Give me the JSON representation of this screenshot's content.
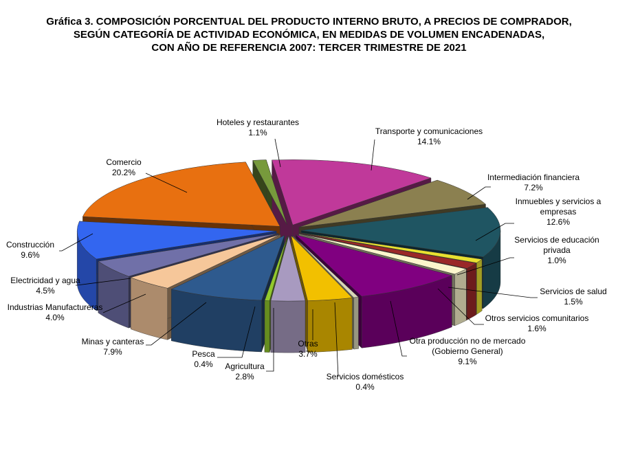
{
  "chart_data": {
    "type": "pie",
    "title_lines": [
      "Gráfica 3. COMPOSICIÓN PORCENTUAL DEL PRODUCTO INTERNO BRUTO, A PRECIOS DE COMPRADOR,",
      "SEGÚN CATEGORÍA DE ACTIVIDAD ECONÓMICA, EN MEDIDAS DE VOLUMEN ENCADENADAS,",
      "CON AÑO DE REFERENCIA 2007: TERCER TRIMESTRE DE 2021"
    ],
    "exploded": true,
    "three_d": true,
    "slices": [
      {
        "label": [
          "Transporte y comunicaciones"
        ],
        "value": 14.1,
        "value_label": "14.1%",
        "color": "#c0399a"
      },
      {
        "label": [
          "Intermediación financiera"
        ],
        "value": 7.2,
        "value_label": "7.2%",
        "color": "#8b8050"
      },
      {
        "label": [
          "Inmuebles y servicios a",
          "empresas"
        ],
        "value": 12.6,
        "value_label": "12.6%",
        "color": "#1f5562"
      },
      {
        "label": [
          "Servicios de educación",
          "privada"
        ],
        "value": 1.0,
        "value_label": "1.0%",
        "color": "#e8e030"
      },
      {
        "label": [
          "Servicios  de salud"
        ],
        "value": 1.5,
        "value_label": "1.5%",
        "color": "#9a2828"
      },
      {
        "label": [
          "Otros servicios comunitarios"
        ],
        "value": 1.6,
        "value_label": "1.6%",
        "color": "#fbf6cc"
      },
      {
        "label": [
          "Otra producción no de mercado",
          "(Gobierno General)"
        ],
        "value": 9.1,
        "value_label": "9.1%",
        "color": "#800080"
      },
      {
        "label": [
          "Servicios  domésticos"
        ],
        "value": 0.4,
        "value_label": "0.4%",
        "color": "#d9d6b8"
      },
      {
        "label": [
          "Otras"
        ],
        "value": 3.7,
        "value_label": "3.7%",
        "color": "#f2c000"
      },
      {
        "label": [
          "Agricultura"
        ],
        "value": 2.8,
        "value_label": "2.8%",
        "color": "#a89ac0"
      },
      {
        "label": [
          "Pesca"
        ],
        "value": 0.4,
        "value_label": "0.4%",
        "color": "#92c92c"
      },
      {
        "label": [
          "Minas  y  canteras"
        ],
        "value": 7.9,
        "value_label": "7.9%",
        "color": "#2e5a8e"
      },
      {
        "label": [
          "Industrias Manufactureras"
        ],
        "value": 4.0,
        "value_label": "4.0%",
        "color": "#f6c79a"
      },
      {
        "label": [
          "Electricidad y agua"
        ],
        "value": 4.5,
        "value_label": "4.5%",
        "color": "#7070a8"
      },
      {
        "label": [
          "Construcción"
        ],
        "value": 9.6,
        "value_label": "9.6%",
        "color": "#3366f0"
      },
      {
        "label": [
          "Comercio"
        ],
        "value": 20.2,
        "value_label": "20.2%",
        "color": "#e87010"
      },
      {
        "label": [
          "Hoteles y restaurantes"
        ],
        "value": 1.1,
        "value_label": "1.1%",
        "color": "#779a3c"
      }
    ]
  }
}
